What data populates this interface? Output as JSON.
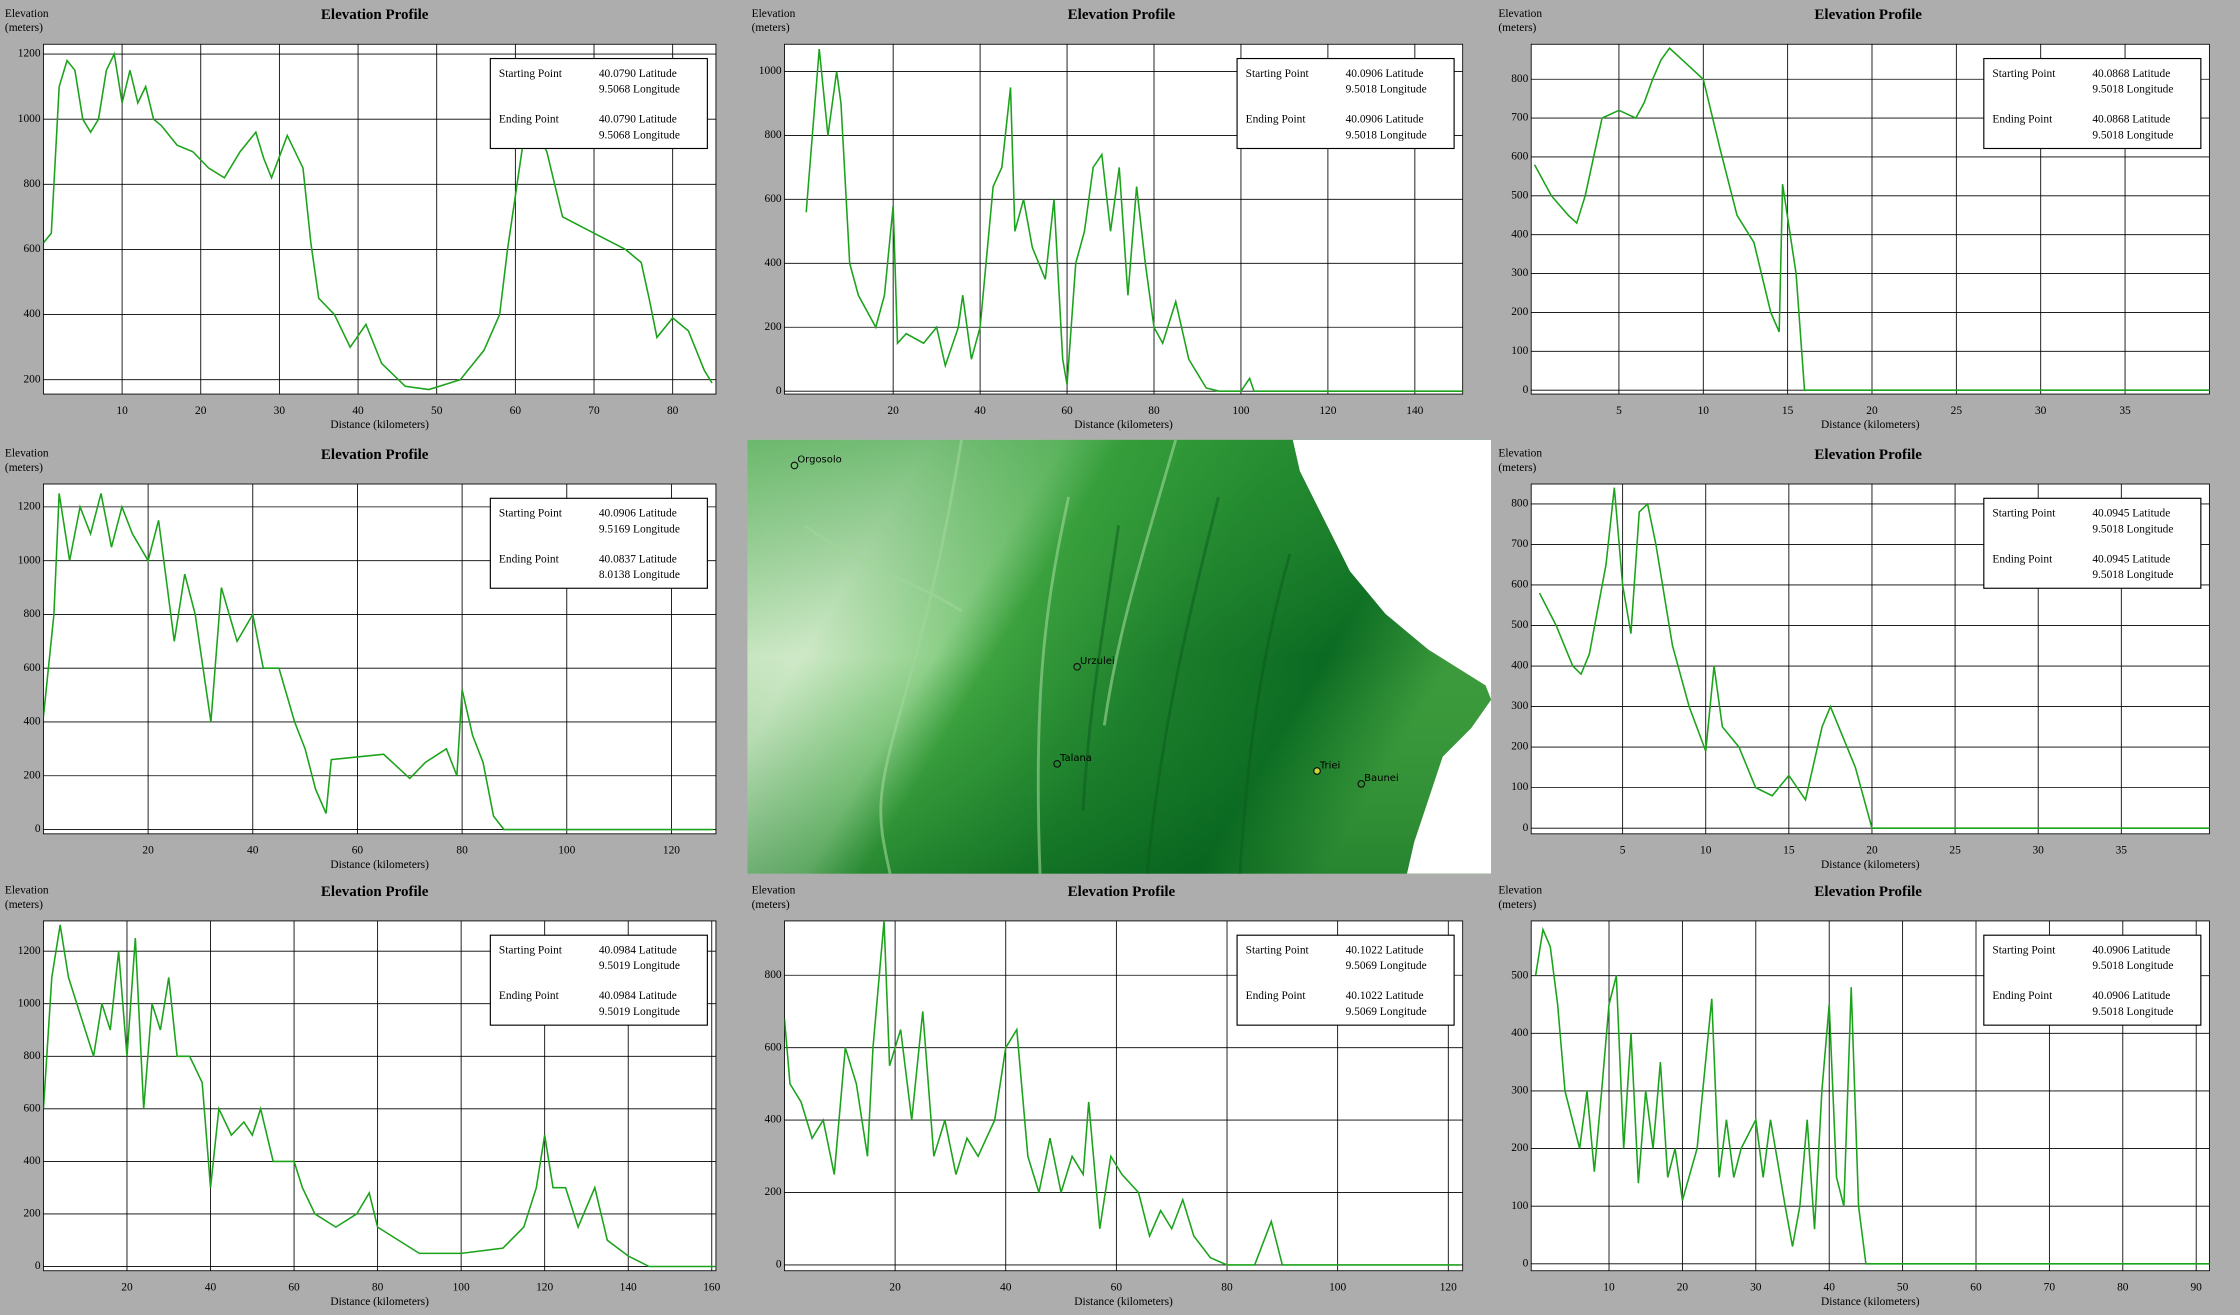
{
  "chart_data": [
    {
      "type": "line",
      "title": "Elevation Profile",
      "y_label": [
        "Elevation",
        "(meters)"
      ],
      "x_label": "Distance (kilometers)",
      "color": "#1ca31c",
      "grid": true,
      "x": [
        0,
        1,
        2,
        3,
        4,
        5,
        6,
        7,
        8,
        9,
        10,
        11,
        12,
        13,
        14,
        15,
        17,
        19,
        21,
        23,
        25,
        27,
        28,
        29,
        31,
        33,
        34,
        35,
        37,
        39,
        41,
        43,
        46,
        49,
        53,
        56,
        58,
        59,
        61,
        62,
        64,
        66,
        70,
        74,
        76,
        77,
        78,
        80,
        82,
        84,
        85
      ],
      "values": [
        620,
        650,
        1100,
        1180,
        1150,
        1000,
        960,
        1000,
        1150,
        1200,
        1050,
        1150,
        1050,
        1100,
        1000,
        980,
        920,
        900,
        850,
        820,
        900,
        960,
        880,
        820,
        950,
        850,
        620,
        450,
        400,
        300,
        370,
        250,
        180,
        170,
        200,
        290,
        400,
        600,
        930,
        1000,
        900,
        700,
        650,
        600,
        560,
        450,
        330,
        390,
        350,
        230,
        190
      ],
      "xlim": [
        0,
        85.5
      ],
      "ylim": [
        156,
        1230
      ],
      "xticks": [
        10,
        20,
        30,
        40,
        50,
        60,
        70,
        80
      ],
      "yticks": [
        200,
        400,
        600,
        800,
        1000,
        1200
      ],
      "info": [
        {
          "label": "Starting Point",
          "lat": "40.0790 Latitude",
          "lon": "9.5068 Longitude"
        },
        {
          "label": "Ending Point",
          "lat": "40.0790 Latitude",
          "lon": "9.5068 Longitude"
        }
      ]
    },
    {
      "type": "line",
      "title": "Elevation Profile",
      "y_label": [
        "Elevation",
        "(meters)"
      ],
      "x_label": "Distance (kilometers)",
      "color": "#1ca31c",
      "grid": true,
      "x": [
        0,
        2,
        3,
        5,
        7,
        8,
        10,
        12,
        14,
        16,
        18,
        20,
        21,
        23,
        27,
        30,
        32,
        35,
        36,
        38,
        40,
        43,
        45,
        47,
        48,
        50,
        52,
        55,
        57,
        59,
        60,
        62,
        64,
        66,
        68,
        70,
        72,
        74,
        76,
        78,
        80,
        82,
        85,
        88,
        92,
        95,
        100,
        102,
        103,
        151
      ],
      "values": [
        560,
        900,
        1070,
        800,
        1000,
        900,
        400,
        300,
        250,
        200,
        300,
        580,
        150,
        180,
        150,
        200,
        80,
        200,
        300,
        100,
        200,
        640,
        700,
        950,
        500,
        600,
        450,
        350,
        600,
        100,
        20,
        400,
        500,
        700,
        740,
        500,
        700,
        300,
        640,
        400,
        200,
        150,
        280,
        100,
        10,
        0,
        0,
        40,
        0,
        0
      ],
      "xlim": [
        -5,
        151
      ],
      "ylim": [
        -9,
        1085
      ],
      "xticks": [
        20,
        40,
        60,
        80,
        100,
        120,
        140
      ],
      "yticks": [
        0,
        200,
        400,
        600,
        800,
        1000
      ],
      "info": [
        {
          "label": "Starting Point",
          "lat": "40.0906 Latitude",
          "lon": "9.5018 Longitude"
        },
        {
          "label": "Ending Point",
          "lat": "40.0906 Latitude",
          "lon": "9.5018 Longitude"
        }
      ]
    },
    {
      "type": "line",
      "title": "Elevation Profile",
      "y_label": [
        "Elevation",
        "(meters)"
      ],
      "x_label": "Distance (kilometers)",
      "color": "#1ca31c",
      "grid": true,
      "x": [
        0,
        1,
        2,
        2.5,
        3,
        4,
        5,
        6,
        6.5,
        7,
        7.5,
        8,
        9,
        10,
        11,
        12,
        13,
        14,
        14.5,
        14.7,
        15.5,
        16,
        40
      ],
      "values": [
        580,
        500,
        450,
        430,
        500,
        700,
        720,
        700,
        740,
        800,
        850,
        880,
        840,
        800,
        620,
        450,
        380,
        200,
        150,
        530,
        300,
        0,
        0
      ],
      "xlim": [
        -0.2,
        40
      ],
      "ylim": [
        -10,
        890
      ],
      "xticks": [
        5,
        10,
        15,
        20,
        25,
        30,
        35
      ],
      "yticks": [
        0,
        100,
        200,
        300,
        400,
        500,
        600,
        700,
        800
      ],
      "info": [
        {
          "label": "Starting Point",
          "lat": "40.0868 Latitude",
          "lon": "9.5018 Longitude"
        },
        {
          "label": "Ending Point",
          "lat": "40.0868 Latitude",
          "lon": "9.5018 Longitude"
        }
      ]
    },
    {
      "type": "line",
      "title": "Elevation Profile",
      "y_label": [
        "Elevation",
        "(meters)"
      ],
      "x_label": "Distance (kilometers)",
      "color": "#1ca31c",
      "grid": true,
      "x": [
        0,
        2,
        3,
        5,
        7,
        9,
        11,
        13,
        15,
        17,
        20,
        22,
        25,
        27,
        29,
        32,
        34,
        37,
        40,
        42,
        45,
        48,
        50,
        52,
        54,
        55,
        60,
        65,
        70,
        73,
        77,
        79,
        80,
        82,
        84,
        86,
        88,
        128
      ],
      "values": [
        420,
        800,
        1250,
        1000,
        1200,
        1100,
        1250,
        1050,
        1200,
        1100,
        1000,
        1150,
        700,
        950,
        800,
        400,
        900,
        700,
        800,
        600,
        600,
        400,
        300,
        150,
        60,
        260,
        270,
        280,
        190,
        250,
        300,
        200,
        520,
        350,
        250,
        50,
        0,
        0
      ],
      "xlim": [
        0,
        128.5
      ],
      "ylim": [
        -16,
        1285
      ],
      "xticks": [
        20,
        40,
        60,
        80,
        100,
        120
      ],
      "yticks": [
        0,
        200,
        400,
        600,
        800,
        1000,
        1200
      ],
      "info": [
        {
          "label": "Starting Point",
          "lat": "40.0906 Latitude",
          "lon": "9.5169 Longitude"
        },
        {
          "label": "Ending Point",
          "lat": "40.0837 Latitude",
          "lon": "8.0138 Longitude"
        }
      ]
    },
    {
      "type": "line",
      "title": "Elevation Profile",
      "y_label": [
        "Elevation",
        "(meters)"
      ],
      "x_label": "Distance (kilometers)",
      "color": "#1ca31c",
      "grid": true,
      "x": [
        0,
        1,
        2,
        2.5,
        3,
        4,
        4.5,
        5,
        5.5,
        6,
        6.5,
        7,
        8,
        9,
        10,
        10.5,
        11,
        12,
        13,
        14,
        15,
        16,
        17,
        17.5,
        18,
        19,
        20,
        40.3
      ],
      "values": [
        580,
        500,
        400,
        380,
        430,
        650,
        840,
        600,
        480,
        780,
        800,
        700,
        450,
        300,
        190,
        400,
        250,
        200,
        100,
        80,
        130,
        70,
        250,
        300,
        250,
        150,
        0,
        0
      ],
      "xlim": [
        -0.5,
        40.3
      ],
      "ylim": [
        -14,
        849
      ],
      "xticks": [
        5,
        10,
        15,
        20,
        25,
        30,
        35
      ],
      "yticks": [
        0,
        100,
        200,
        300,
        400,
        500,
        600,
        700,
        800
      ],
      "info": [
        {
          "label": "Starting Point",
          "lat": "40.0945 Latitude",
          "lon": "9.5018 Longitude"
        },
        {
          "label": "Ending Point",
          "lat": "40.0945 Latitude",
          "lon": "9.5018 Longitude"
        }
      ]
    },
    {
      "type": "line",
      "title": "Elevation Profile",
      "y_label": [
        "Elevation",
        "(meters)"
      ],
      "x_label": "Distance (kilometers)",
      "color": "#1ca31c",
      "grid": true,
      "x": [
        0,
        2,
        4,
        6,
        8,
        10,
        12,
        14,
        16,
        18,
        20,
        22,
        24,
        26,
        28,
        30,
        32,
        35,
        38,
        40,
        42,
        45,
        48,
        50,
        52,
        55,
        60,
        62,
        65,
        70,
        75,
        78,
        80,
        85,
        90,
        100,
        110,
        115,
        118,
        120,
        122,
        125,
        128,
        132,
        135,
        140,
        145,
        161
      ],
      "values": [
        600,
        1100,
        1300,
        1100,
        1000,
        900,
        800,
        1000,
        900,
        1200,
        800,
        1250,
        600,
        1000,
        900,
        1100,
        800,
        800,
        700,
        300,
        600,
        500,
        550,
        500,
        600,
        400,
        400,
        300,
        200,
        150,
        200,
        280,
        150,
        100,
        50,
        50,
        70,
        150,
        300,
        500,
        300,
        300,
        150,
        300,
        100,
        40,
        0,
        0
      ],
      "xlim": [
        0,
        161
      ],
      "ylim": [
        -16,
        1315
      ],
      "xticks": [
        20,
        40,
        60,
        80,
        100,
        120,
        140,
        160
      ],
      "yticks": [
        0,
        200,
        400,
        600,
        800,
        1000,
        1200
      ],
      "info": [
        {
          "label": "Starting Point",
          "lat": "40.0984 Latitude",
          "lon": "9.5019 Longitude"
        },
        {
          "label": "Ending Point",
          "lat": "40.0984 Latitude",
          "lon": "9.5019 Longitude"
        }
      ]
    },
    {
      "type": "line",
      "title": "Elevation Profile",
      "y_label": [
        "Elevation",
        "(meters)"
      ],
      "x_label": "Distance (kilometers)",
      "color": "#1ca31c",
      "grid": true,
      "x": [
        0,
        1,
        3,
        5,
        7,
        9,
        11,
        13,
        15,
        16,
        18,
        19,
        21,
        23,
        25,
        27,
        29,
        31,
        33,
        35,
        38,
        40,
        42,
        44,
        46,
        48,
        50,
        52,
        54,
        55,
        57,
        59,
        61,
        64,
        66,
        68,
        70,
        72,
        74,
        77,
        80,
        85,
        88,
        90,
        122
      ],
      "values": [
        680,
        500,
        450,
        350,
        400,
        250,
        600,
        500,
        300,
        600,
        950,
        550,
        650,
        400,
        700,
        300,
        400,
        250,
        350,
        300,
        400,
        600,
        650,
        300,
        200,
        350,
        200,
        300,
        250,
        450,
        100,
        300,
        250,
        200,
        80,
        150,
        100,
        180,
        80,
        20,
        0,
        0,
        120,
        0,
        0
      ],
      "xlim": [
        0,
        122.6
      ],
      "ylim": [
        -16,
        950
      ],
      "xticks": [
        20,
        40,
        60,
        80,
        100,
        120
      ],
      "yticks": [
        0,
        200,
        400,
        600,
        800
      ],
      "info": [
        {
          "label": "Starting Point",
          "lat": "40.1022 Latitude",
          "lon": "9.5069 Longitude"
        },
        {
          "label": "Ending Point",
          "lat": "40.1022 Latitude",
          "lon": "9.5069 Longitude"
        }
      ]
    },
    {
      "type": "line",
      "title": "Elevation Profile",
      "y_label": [
        "Elevation",
        "(meters)"
      ],
      "x_label": "Distance (kilometers)",
      "color": "#1ca31c",
      "grid": true,
      "x": [
        0,
        1,
        2,
        3,
        4,
        5,
        6,
        7,
        8,
        9,
        10,
        11,
        12,
        13,
        14,
        15,
        16,
        17,
        18,
        19,
        20,
        22,
        24,
        25,
        26,
        27,
        28,
        30,
        31,
        32,
        34,
        35,
        36,
        37,
        38,
        39,
        40,
        41,
        42,
        43,
        44,
        45,
        91.8
      ],
      "values": [
        500,
        580,
        550,
        450,
        300,
        250,
        200,
        300,
        160,
        300,
        450,
        500,
        200,
        400,
        140,
        300,
        200,
        350,
        150,
        200,
        110,
        200,
        460,
        150,
        250,
        150,
        200,
        250,
        150,
        250,
        100,
        30,
        100,
        250,
        60,
        300,
        450,
        150,
        100,
        480,
        100,
        0,
        0
      ],
      "xlim": [
        -0.6,
        91.8
      ],
      "ylim": [
        -12,
        595
      ],
      "xticks": [
        10,
        20,
        30,
        40,
        50,
        60,
        70,
        80,
        90
      ],
      "yticks": [
        0,
        100,
        200,
        300,
        400,
        500
      ],
      "info": [
        {
          "label": "Starting Point",
          "lat": "40.0906 Latitude",
          "lon": "9.5018 Longitude"
        },
        {
          "label": "Ending Point",
          "lat": "40.0906 Latitude",
          "lon": "9.5018 Longitude"
        }
      ]
    }
  ],
  "map": {
    "places": [
      {
        "name": "Orgosolo"
      },
      {
        "name": "Urzulei"
      },
      {
        "name": "Talana"
      },
      {
        "name": "Triei"
      },
      {
        "name": "Baunei"
      }
    ]
  }
}
